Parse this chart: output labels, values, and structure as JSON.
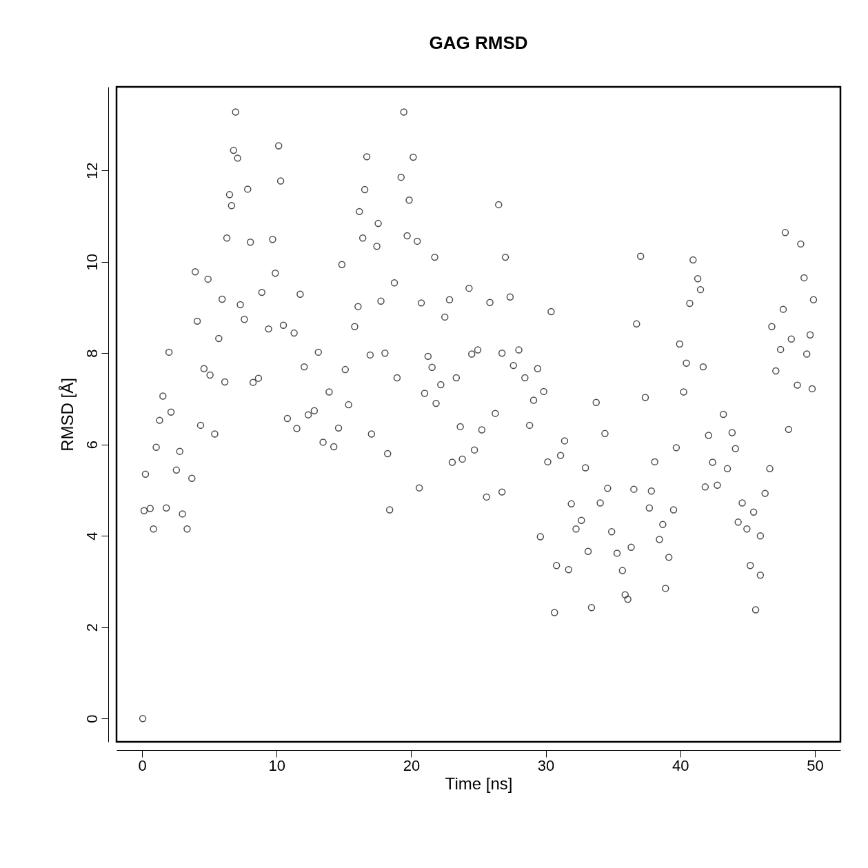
{
  "chart_data": {
    "type": "scatter",
    "title": "GAG RMSD",
    "xlabel": "Time [ns]",
    "ylabel": "RMSD [Å]",
    "xlim": [
      -1.9,
      51.9
    ],
    "ylim": [
      -0.51,
      13.83
    ],
    "xticks": [
      0,
      10,
      20,
      30,
      40,
      50
    ],
    "yticks": [
      0,
      2,
      4,
      6,
      8,
      10,
      12
    ],
    "grid": false,
    "marker": "circle",
    "series": [
      {
        "color": "#000000",
        "x": [
          0.05,
          0.15,
          0.25,
          0.6,
          0.85,
          1.05,
          1.3,
          1.55,
          1.8,
          2.0,
          2.15,
          2.55,
          2.8,
          3.0,
          3.35,
          3.7,
          3.95,
          4.1,
          4.35,
          4.6,
          4.9,
          5.05,
          5.4,
          5.7,
          5.95,
          6.15,
          6.3,
          6.5,
          6.65,
          6.8,
          6.95,
          7.1,
          7.3,
          7.6,
          7.85,
          8.05,
          8.25,
          8.65,
          8.9,
          9.4,
          9.7,
          9.9,
          10.15,
          10.3,
          10.5,
          10.8,
          11.3,
          11.5,
          11.75,
          12.05,
          12.35,
          12.8,
          13.1,
          13.45,
          13.9,
          14.25,
          14.6,
          14.85,
          15.1,
          15.35,
          15.8,
          16.05,
          16.15,
          16.4,
          16.55,
          16.7,
          16.95,
          17.05,
          17.45,
          17.55,
          17.75,
          18.05,
          18.25,
          18.4,
          18.75,
          18.95,
          19.25,
          19.45,
          19.7,
          19.85,
          20.15,
          20.45,
          20.6,
          20.75,
          21.0,
          21.25,
          21.55,
          21.75,
          21.85,
          22.2,
          22.5,
          22.85,
          23.05,
          23.35,
          23.65,
          23.8,
          24.3,
          24.5,
          24.7,
          24.95,
          25.25,
          25.6,
          25.85,
          26.25,
          26.5,
          26.75,
          26.75,
          27.0,
          27.35,
          27.6,
          28.0,
          28.45,
          28.8,
          29.1,
          29.4,
          29.6,
          29.85,
          30.15,
          30.4,
          30.65,
          30.8,
          31.1,
          31.4,
          31.7,
          31.9,
          32.25,
          32.65,
          32.95,
          33.15,
          33.4,
          33.75,
          34.05,
          34.4,
          34.6,
          34.9,
          35.3,
          35.7,
          35.9,
          36.1,
          36.35,
          36.55,
          36.75,
          37.05,
          37.4,
          37.7,
          37.85,
          38.1,
          38.45,
          38.7,
          38.9,
          39.15,
          39.5,
          39.7,
          39.95,
          40.25,
          40.45,
          40.7,
          40.95,
          41.3,
          41.5,
          41.7,
          41.85,
          42.1,
          42.4,
          42.75,
          43.2,
          43.5,
          43.85,
          44.1,
          44.3,
          44.6,
          44.95,
          45.2,
          45.45,
          45.6,
          45.95,
          45.95,
          46.3,
          46.65,
          46.8,
          47.1,
          47.45,
          47.65,
          47.8,
          48.05,
          48.25,
          48.7,
          48.95,
          49.2,
          49.4,
          49.65,
          49.8,
          49.9
        ],
        "values": [
          0,
          4.55,
          5.35,
          4.6,
          4.15,
          5.94,
          6.53,
          7.06,
          4.61,
          8.02,
          6.71,
          5.44,
          5.85,
          4.48,
          4.15,
          5.26,
          9.78,
          8.7,
          6.42,
          7.66,
          9.62,
          7.52,
          6.23,
          8.32,
          9.18,
          7.37,
          10.52,
          11.47,
          11.23,
          12.44,
          13.28,
          12.27,
          9.06,
          8.74,
          11.59,
          10.43,
          7.36,
          7.45,
          9.33,
          8.53,
          10.49,
          9.75,
          12.54,
          11.77,
          8.61,
          6.57,
          8.44,
          6.35,
          9.29,
          7.7,
          6.65,
          6.74,
          8.02,
          6.05,
          7.15,
          5.95,
          6.36,
          9.94,
          7.64,
          6.87,
          8.58,
          9.02,
          11.1,
          10.52,
          11.58,
          12.3,
          7.96,
          6.23,
          10.34,
          10.84,
          9.14,
          8.0,
          5.8,
          4.57,
          9.54,
          7.46,
          11.85,
          13.28,
          10.57,
          11.35,
          12.29,
          10.45,
          5.05,
          9.1,
          7.12,
          7.93,
          7.69,
          10.1,
          6.9,
          7.31,
          8.79,
          9.17,
          5.61,
          7.46,
          6.39,
          5.68,
          9.42,
          7.98,
          5.88,
          8.07,
          6.32,
          4.85,
          9.11,
          6.68,
          11.25,
          8.0,
          4.96,
          10.1,
          9.23,
          7.73,
          8.07,
          7.46,
          6.42,
          6.97,
          7.66,
          3.98,
          7.16,
          5.62,
          8.91,
          2.32,
          3.35,
          5.76,
          6.08,
          3.26,
          4.7,
          4.15,
          4.34,
          5.49,
          3.66,
          2.43,
          6.92,
          4.72,
          6.24,
          5.04,
          4.09,
          3.62,
          3.24,
          2.71,
          2.61,
          3.75,
          5.02,
          8.64,
          10.12,
          7.03,
          4.61,
          4.98,
          5.62,
          3.92,
          4.25,
          2.85,
          3.53,
          4.57,
          5.93,
          8.2,
          7.15,
          7.78,
          9.09,
          10.04,
          9.63,
          9.39,
          7.7,
          5.07,
          6.2,
          5.61,
          5.11,
          6.66,
          5.47,
          6.26,
          5.91,
          4.3,
          4.72,
          4.15,
          3.35,
          4.52,
          2.38,
          4.0,
          3.14,
          4.93,
          5.47,
          8.58,
          7.61,
          8.08,
          8.96,
          10.64,
          6.33,
          8.31,
          7.3,
          10.39,
          9.65,
          7.98,
          8.4,
          7.22,
          9.17
        ]
      }
    ]
  }
}
